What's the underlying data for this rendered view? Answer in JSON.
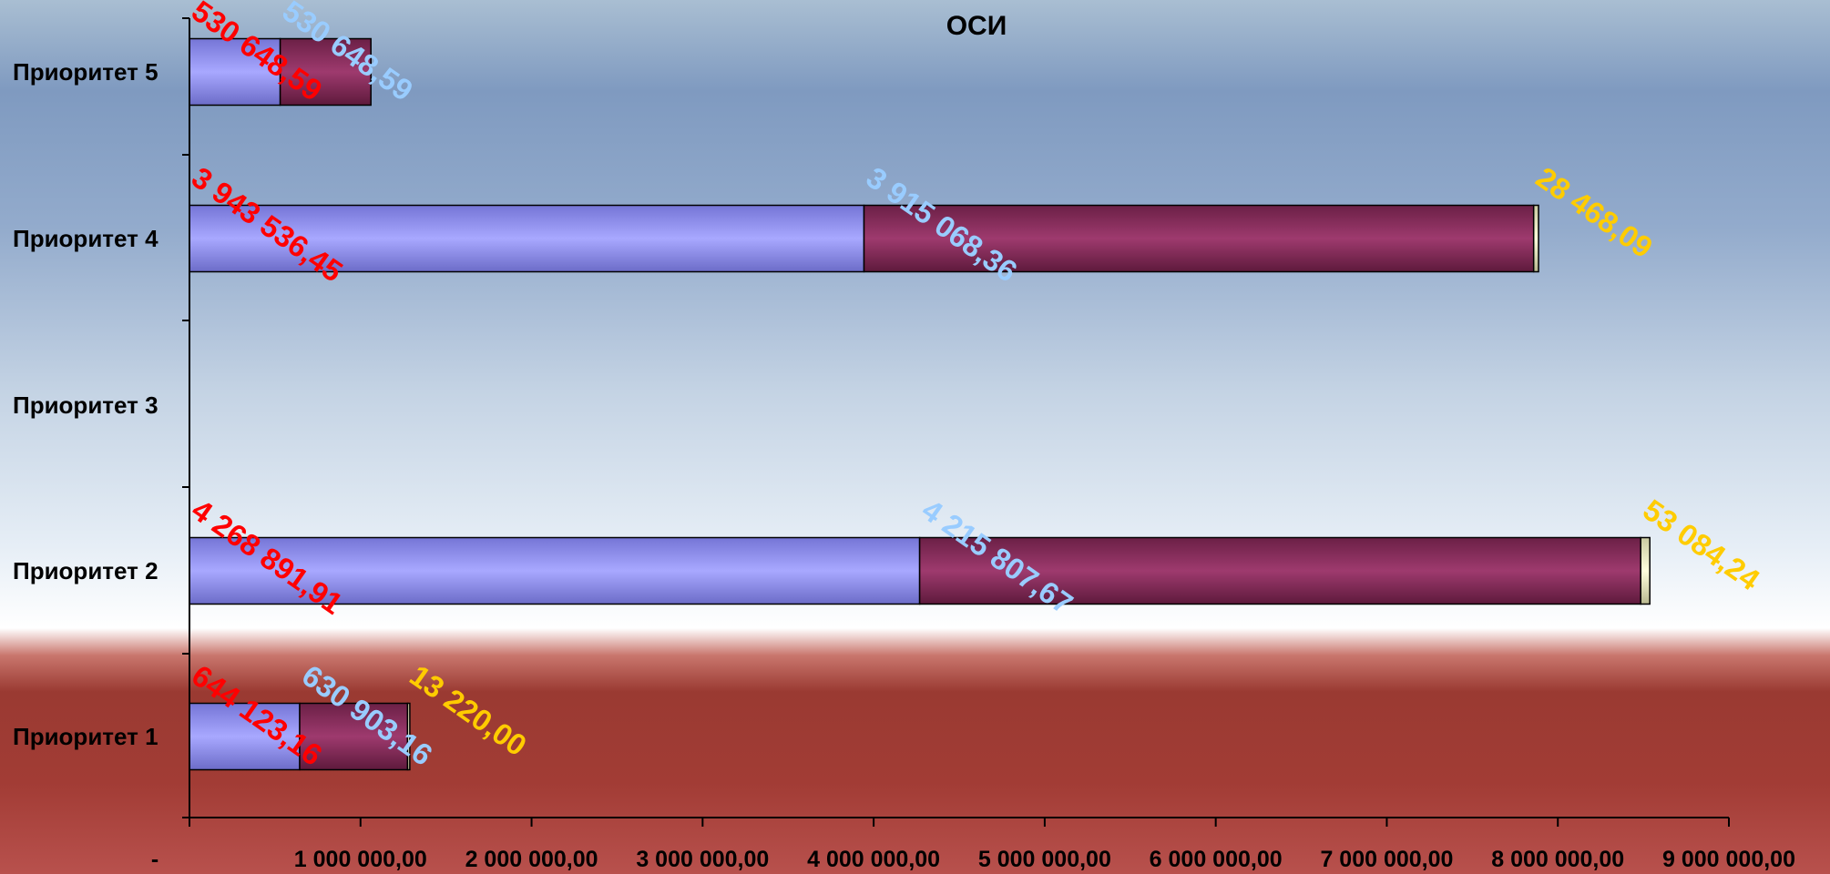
{
  "chart_data": {
    "type": "bar",
    "orientation": "horizontal",
    "stacked": true,
    "title": "ОСИ",
    "categories": [
      "Приоритет 1",
      "Приоритет 2",
      "Приоритет 3",
      "Приоритет 4",
      "Приоритет 5"
    ],
    "series": [
      {
        "color": "#9a9aff",
        "label_color": "#ff0000",
        "values": [
          644123.16,
          4268891.91,
          0,
          3943536.45,
          530648.59
        ],
        "labels": [
          "644 123,16",
          "4 268 891,91",
          "",
          "3 943 536,45",
          "530 648,59"
        ]
      },
      {
        "color": "#993366",
        "label_color": "#99ccff",
        "values": [
          630903.16,
          4215807.67,
          0,
          3915068.36,
          530648.59
        ],
        "labels": [
          "630 903,16",
          "4 215 807,67",
          "",
          "3 915 068,36",
          "530 648,59"
        ]
      },
      {
        "color": "#ffffcc",
        "label_color": "#ffcc00",
        "values": [
          13220.0,
          53084.24,
          0,
          28468.09,
          0
        ],
        "labels": [
          "13 220,00",
          "53 084,24",
          "",
          "28 468,09",
          ""
        ]
      }
    ],
    "xlim": [
      0,
      9000000
    ],
    "xticks": [
      "-",
      "1 000 000,00",
      "2 000 000,00",
      "3 000 000,00",
      "4 000 000,00",
      "5 000 000,00",
      "6 000 000,00",
      "7 000 000,00",
      "8 000 000,00",
      "9 000 000,00"
    ],
    "grid": false,
    "legend": "none"
  }
}
